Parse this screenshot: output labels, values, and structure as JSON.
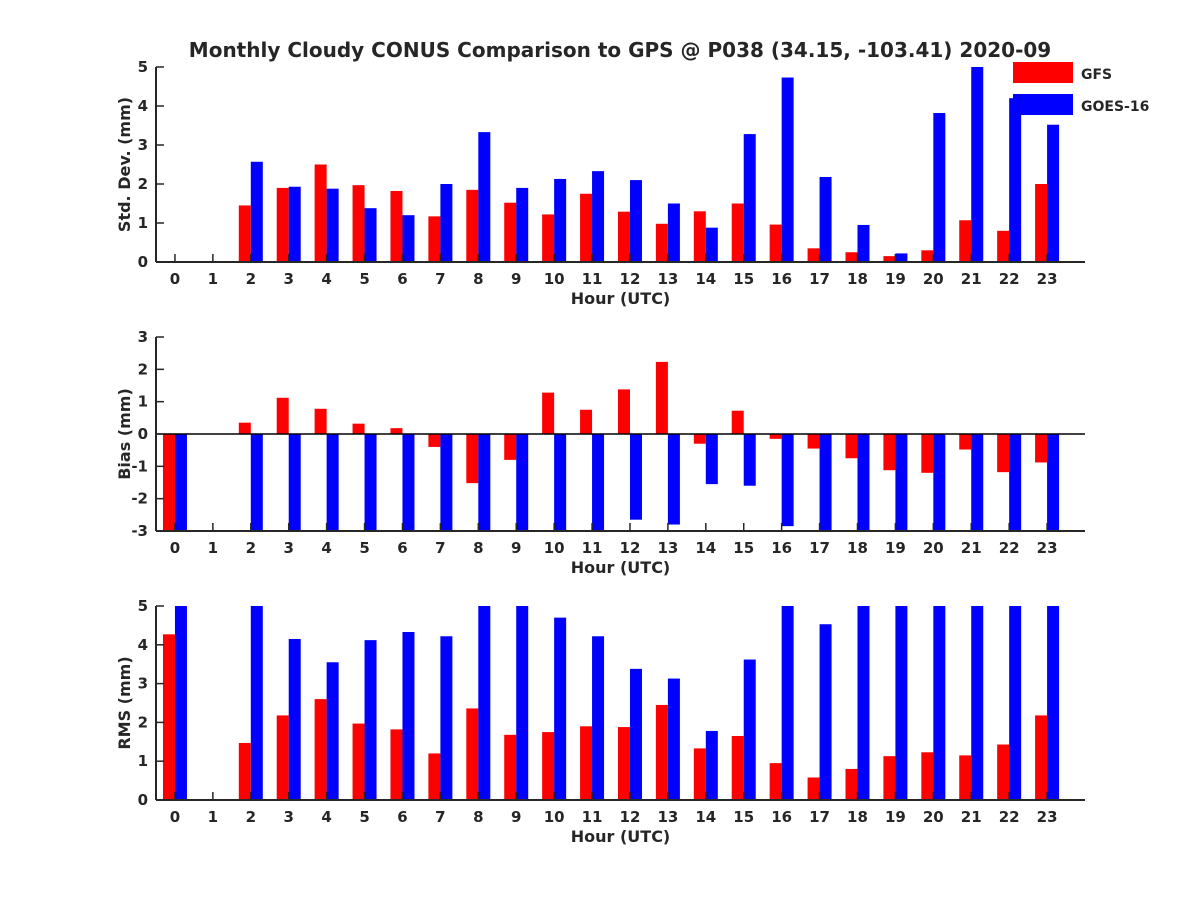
{
  "chart_data": {
    "title": "Monthly Cloudy CONUS Comparison to GPS @ P038 (34.15, -103.41) 2020-09",
    "legend": {
      "position": "top-right",
      "entries": [
        "GFS",
        "GOES-16"
      ]
    },
    "colors": {
      "GFS": "#ff0000",
      "GOES-16": "#0000ff"
    },
    "panels": [
      {
        "type": "bar",
        "ylabel": "Std. Dev. (mm)",
        "xlabel": "Hour (UTC)",
        "ylim": [
          0,
          5
        ],
        "yticks": [
          "0",
          "1",
          "2",
          "3",
          "4",
          "5"
        ],
        "categories": [
          "0",
          "1",
          "2",
          "3",
          "4",
          "5",
          "6",
          "7",
          "8",
          "9",
          "10",
          "11",
          "12",
          "13",
          "14",
          "15",
          "16",
          "17",
          "18",
          "19",
          "20",
          "21",
          "22",
          "23"
        ],
        "series": [
          {
            "name": "GFS",
            "values": [
              null,
              null,
              1.45,
              1.9,
              2.5,
              1.97,
              1.82,
              1.17,
              1.85,
              1.52,
              1.22,
              1.75,
              1.29,
              0.98,
              1.3,
              1.5,
              0.96,
              0.35,
              0.25,
              0.15,
              0.3,
              1.07,
              0.8,
              2.0
            ]
          },
          {
            "name": "GOES-16",
            "values": [
              null,
              null,
              2.57,
              1.93,
              1.88,
              1.38,
              1.2,
              2.0,
              3.33,
              1.9,
              2.13,
              2.33,
              2.1,
              1.5,
              0.88,
              3.28,
              4.73,
              2.18,
              0.95,
              0.22,
              3.82,
              5.0,
              4.2,
              3.52
            ]
          }
        ]
      },
      {
        "type": "bar",
        "ylabel": "Bias (mm)",
        "xlabel": "Hour (UTC)",
        "ylim": [
          -3,
          3
        ],
        "yticks": [
          "-3",
          "-2",
          "-1",
          "0",
          "1",
          "2",
          "3"
        ],
        "categories": [
          "0",
          "1",
          "2",
          "3",
          "4",
          "5",
          "6",
          "7",
          "8",
          "9",
          "10",
          "11",
          "12",
          "13",
          "14",
          "15",
          "16",
          "17",
          "18",
          "19",
          "20",
          "21",
          "22",
          "23"
        ],
        "series": [
          {
            "name": "GFS",
            "values": [
              -3.0,
              null,
              0.35,
              1.12,
              0.78,
              0.32,
              0.18,
              -0.4,
              -1.52,
              -0.8,
              1.28,
              0.75,
              1.38,
              2.23,
              -0.3,
              0.72,
              -0.15,
              -0.45,
              -0.75,
              -1.12,
              -1.2,
              -0.48,
              -1.18,
              -0.88
            ]
          },
          {
            "name": "GOES-16",
            "values": [
              -3.0,
              null,
              -3.0,
              -3.0,
              -3.0,
              -3.0,
              -3.0,
              -3.0,
              -3.0,
              -3.0,
              -3.0,
              -3.0,
              -2.65,
              -2.8,
              -1.55,
              -1.6,
              -2.85,
              -3.0,
              -3.0,
              -3.0,
              -3.0,
              -3.0,
              -3.0,
              -3.0
            ]
          }
        ]
      },
      {
        "type": "bar",
        "ylabel": "RMS (mm)",
        "xlabel": "Hour (UTC)",
        "ylim": [
          0,
          5
        ],
        "yticks": [
          "0",
          "1",
          "2",
          "3",
          "4",
          "5"
        ],
        "categories": [
          "0",
          "1",
          "2",
          "3",
          "4",
          "5",
          "6",
          "7",
          "8",
          "9",
          "10",
          "11",
          "12",
          "13",
          "14",
          "15",
          "16",
          "17",
          "18",
          "19",
          "20",
          "21",
          "22",
          "23"
        ],
        "series": [
          {
            "name": "GFS",
            "values": [
              4.27,
              null,
              1.47,
              2.18,
              2.6,
              1.97,
              1.82,
              1.2,
              2.36,
              1.68,
              1.75,
              1.9,
              1.88,
              2.45,
              1.33,
              1.65,
              0.95,
              0.58,
              0.8,
              1.13,
              1.23,
              1.15,
              1.43,
              2.18
            ]
          },
          {
            "name": "GOES-16",
            "values": [
              5.0,
              null,
              5.0,
              4.15,
              3.55,
              4.12,
              4.33,
              4.22,
              5.0,
              5.0,
              4.7,
              4.22,
              3.38,
              3.13,
              1.78,
              3.62,
              5.0,
              4.53,
              5.0,
              5.0,
              5.0,
              5.0,
              5.0,
              5.0
            ]
          }
        ]
      }
    ]
  }
}
